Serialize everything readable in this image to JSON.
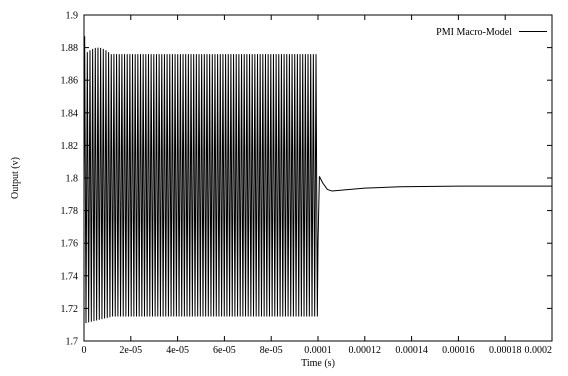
{
  "chart_data": {
    "type": "line",
    "title": "",
    "xlabel": "Time (s)",
    "ylabel": "Output (v)",
    "xlim": [
      0,
      0.0002
    ],
    "ylim": [
      1.7,
      1.9
    ],
    "x_ticks": [
      0,
      2e-05,
      4e-05,
      6e-05,
      8e-05,
      0.0001,
      0.00012,
      0.00014,
      0.00016,
      0.00018,
      0.0002
    ],
    "x_tick_labels": [
      "0",
      "2e-05",
      "4e-05",
      "6e-05",
      "8e-05",
      "0.0001",
      "0.00012",
      "0.00014",
      "0.00016",
      "0.00018",
      "0.0002"
    ],
    "y_ticks": [
      1.7,
      1.72,
      1.74,
      1.76,
      1.78,
      1.8,
      1.82,
      1.84,
      1.86,
      1.88,
      1.9
    ],
    "y_tick_labels": [
      "1.7",
      "1.72",
      "1.74",
      "1.76",
      "1.78",
      "1.8",
      "1.82",
      "1.84",
      "1.86",
      "1.88",
      "1.9"
    ],
    "grid": false,
    "legend_position": "top-right",
    "series": [
      {
        "name": "PMI Macro-Model",
        "color": "#000000",
        "description_points": {
          "oscillation_start": 0,
          "oscillation_end": 0.0001,
          "oscillation_high": 1.876,
          "oscillation_low": 1.715,
          "oscillation_cycles": 88,
          "initial_peak": 1.887,
          "initial_trough": 1.711,
          "overshoot": 1.801,
          "dip": 1.792,
          "settle_value": 1.795
        }
      }
    ]
  }
}
